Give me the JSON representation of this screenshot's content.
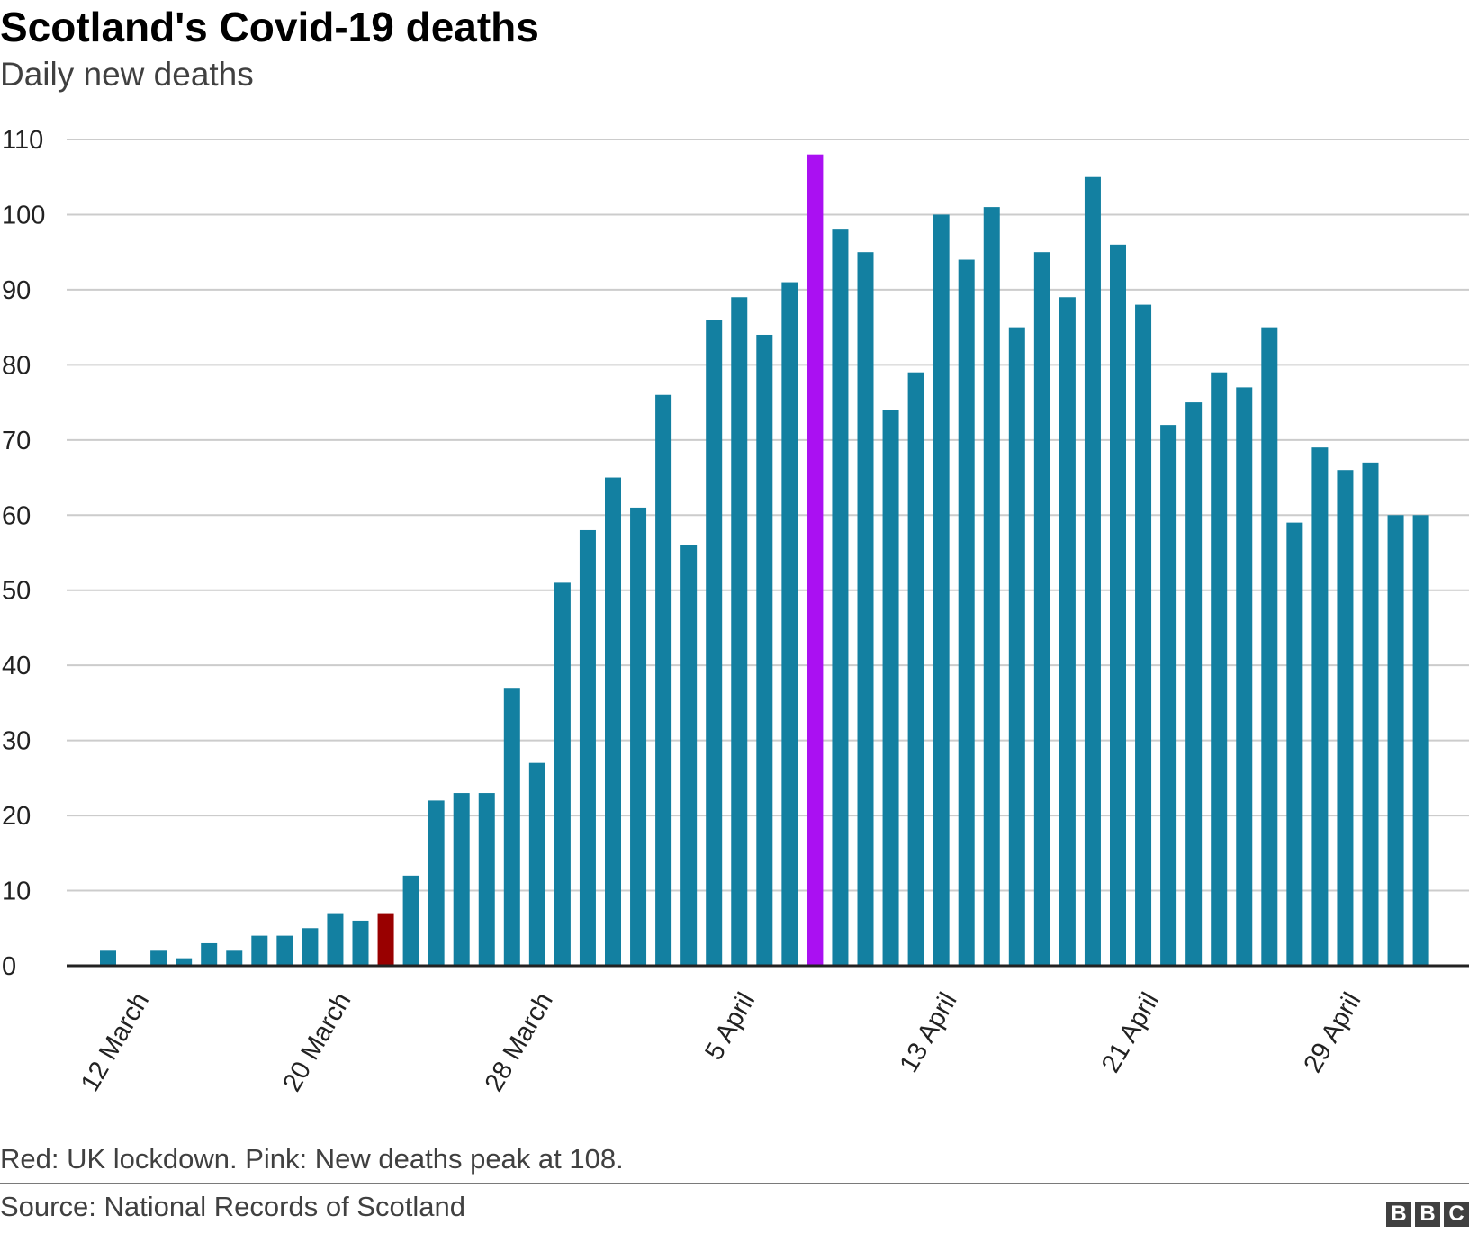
{
  "chart_data": {
    "type": "bar",
    "title": "Scotland's Covid-19 deaths",
    "subtitle": "Daily new deaths",
    "xlabel": "",
    "ylabel": "",
    "ylim": [
      0,
      110
    ],
    "yticks": [
      0,
      10,
      20,
      30,
      40,
      50,
      60,
      70,
      80,
      90,
      100,
      110
    ],
    "x_tick_labels": [
      {
        "label": "12 March",
        "index": 1
      },
      {
        "label": "20 March",
        "index": 9
      },
      {
        "label": "28 March",
        "index": 17
      },
      {
        "label": "5 April",
        "index": 25
      },
      {
        "label": "13 April",
        "index": 33
      },
      {
        "label": "21 April",
        "index": 41
      },
      {
        "label": "29 April",
        "index": 49
      }
    ],
    "values": [
      2,
      0,
      2,
      1,
      3,
      2,
      4,
      4,
      5,
      7,
      6,
      7,
      12,
      22,
      23,
      23,
      37,
      27,
      51,
      58,
      65,
      61,
      76,
      56,
      86,
      89,
      84,
      91,
      108,
      98,
      95,
      74,
      79,
      100,
      94,
      101,
      85,
      95,
      89,
      105,
      96,
      88,
      72,
      75,
      79,
      77,
      85,
      59,
      69,
      66,
      67,
      60,
      60
    ],
    "highlights": [
      {
        "index": 11,
        "color": "#990000",
        "meaning": "UK lockdown"
      },
      {
        "index": 28,
        "color": "#aa10f2",
        "meaning": "New deaths peak at 108"
      }
    ],
    "bar_color": "#1380a1",
    "grid": true
  },
  "note": "Red: UK lockdown. Pink: New deaths peak at 108.",
  "source": "Source: National Records of Scotland",
  "logo": [
    "B",
    "B",
    "C"
  ]
}
